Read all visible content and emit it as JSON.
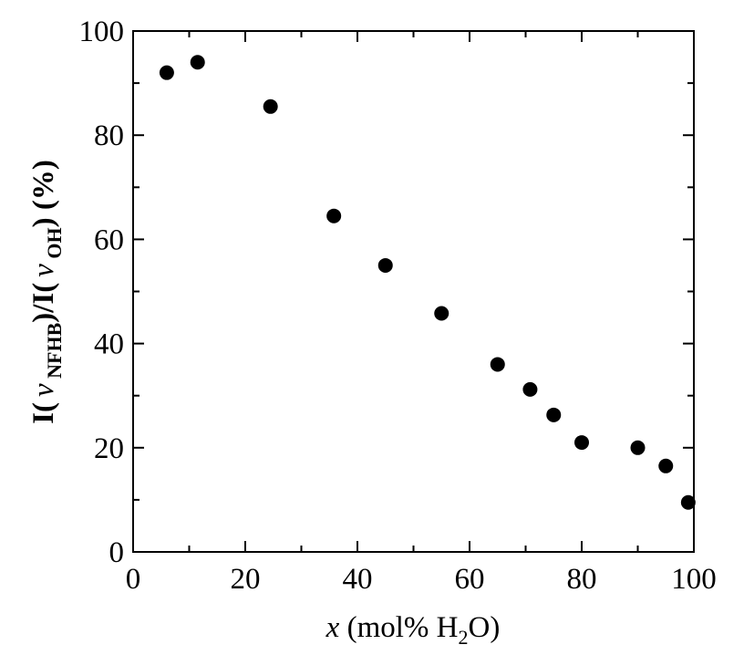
{
  "chart_data": {
    "type": "scatter",
    "xlabel": {
      "var": "x",
      "text": " (mol% H",
      "sub": "2",
      "tail": "O)"
    },
    "ylabel": {
      "p1": "I(",
      "nu1": "ν",
      "sub1": " NFHB",
      "p2": ")/I(",
      "nu2": "ν",
      "sub2": " OH",
      "p3": ") (%)"
    },
    "xlim": [
      0,
      100
    ],
    "ylim": [
      0,
      100
    ],
    "xticks": [
      "0",
      "20",
      "40",
      "60",
      "80",
      "100"
    ],
    "yticks": [
      "0",
      "20",
      "40",
      "60",
      "80",
      "100"
    ],
    "grid": false,
    "marker_color": "#000000",
    "series": [
      {
        "x": [
          6,
          11.5,
          24.5,
          35.8,
          45,
          55,
          65,
          70.8,
          75,
          80,
          90,
          95,
          99
        ],
        "y": [
          92,
          94,
          85.5,
          64.5,
          55,
          45.8,
          36,
          31.2,
          26.3,
          21,
          20,
          16.5,
          9.5
        ]
      }
    ]
  }
}
